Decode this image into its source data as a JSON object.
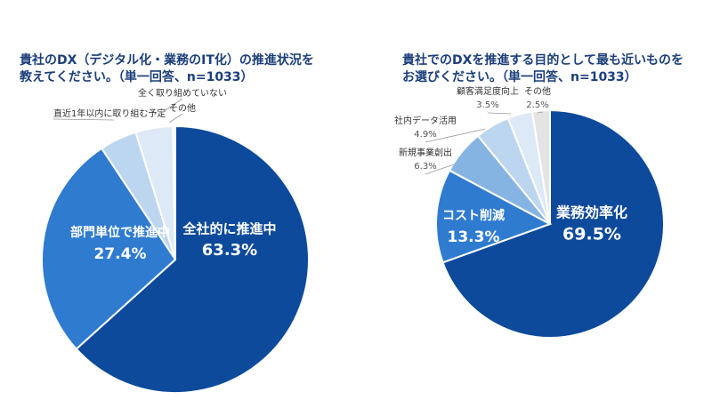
{
  "chart_data": [
    {
      "type": "pie",
      "title": [
        "貴社のDX（デジタル化・業務のIT化）の推進状況を",
        "教えてください。（単一回答、n=1033）"
      ],
      "categories": [
        "全社的に推進中",
        "部門単位で推進中",
        "直近1年以内に取り組む予定",
        "全く取り組めていない",
        "その他"
      ],
      "values": [
        63.3,
        27.4,
        4.5,
        4.5,
        0.3
      ],
      "value_labels": [
        "63.3%",
        "27.4%",
        null,
        null,
        null
      ],
      "colors": [
        "#0d4a9b",
        "#2f7bd0",
        "#bcd6ef",
        "#dde9f6",
        "#eeeeee"
      ]
    },
    {
      "type": "pie",
      "title": [
        "貴社でのDXを推進する目的として最も近いものを",
        "お選びください。（単一回答、n=1033）"
      ],
      "categories": [
        "業務効率化",
        "コスト削減",
        "新規事業創出",
        "社内データ活用",
        "顧客満足度向上",
        "その他"
      ],
      "values": [
        69.5,
        13.3,
        6.3,
        4.9,
        3.5,
        2.5
      ],
      "value_labels": [
        "69.5%",
        "13.3%",
        "6.3%",
        "4.9%",
        "3.5%",
        "2.5%"
      ],
      "colors": [
        "#0d4a9b",
        "#2f7bd0",
        "#86b4e2",
        "#bcd6ef",
        "#dde9f6",
        "#e4e4e4"
      ]
    }
  ]
}
